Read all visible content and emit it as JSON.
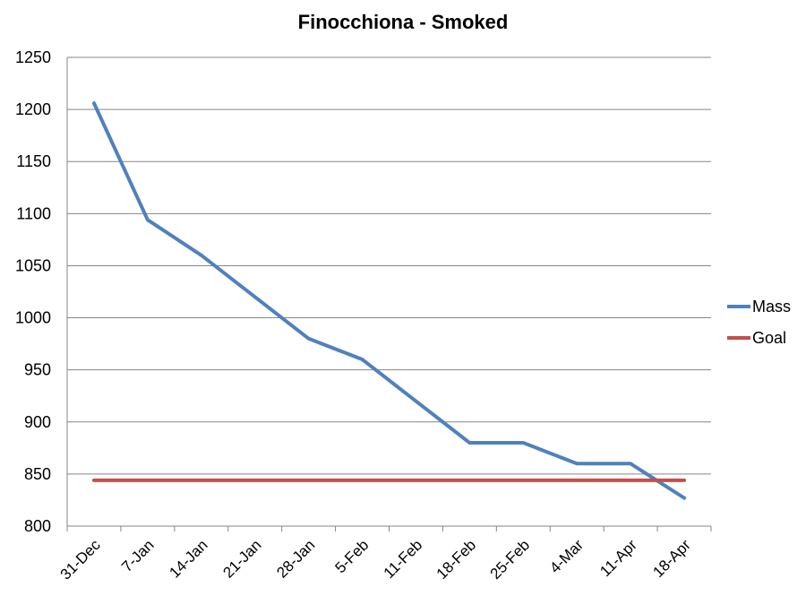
{
  "chart_data": {
    "type": "line",
    "title": "Finocchiona - Smoked",
    "xlabel": "",
    "ylabel": "",
    "categories": [
      "31-Dec",
      "7-Jan",
      "14-Jan",
      "21-Jan",
      "28-Jan",
      "5-Feb",
      "11-Feb",
      "18-Feb",
      "25-Feb",
      "4-Mar",
      "11-Apr",
      "18-Apr"
    ],
    "ylim": [
      800,
      1250
    ],
    "yticks": [
      800,
      850,
      900,
      950,
      1000,
      1050,
      1100,
      1150,
      1200,
      1250
    ],
    "grid": true,
    "legend_position": "right",
    "series": [
      {
        "name": "Mass",
        "color": "#4f81bd",
        "values": [
          1206,
          1094,
          1060,
          1020,
          980,
          960,
          920,
          880,
          880,
          860,
          860,
          827
        ]
      },
      {
        "name": "Goal",
        "color": "#c0504d",
        "values": [
          844,
          844,
          844,
          844,
          844,
          844,
          844,
          844,
          844,
          844,
          844,
          844
        ]
      }
    ]
  }
}
